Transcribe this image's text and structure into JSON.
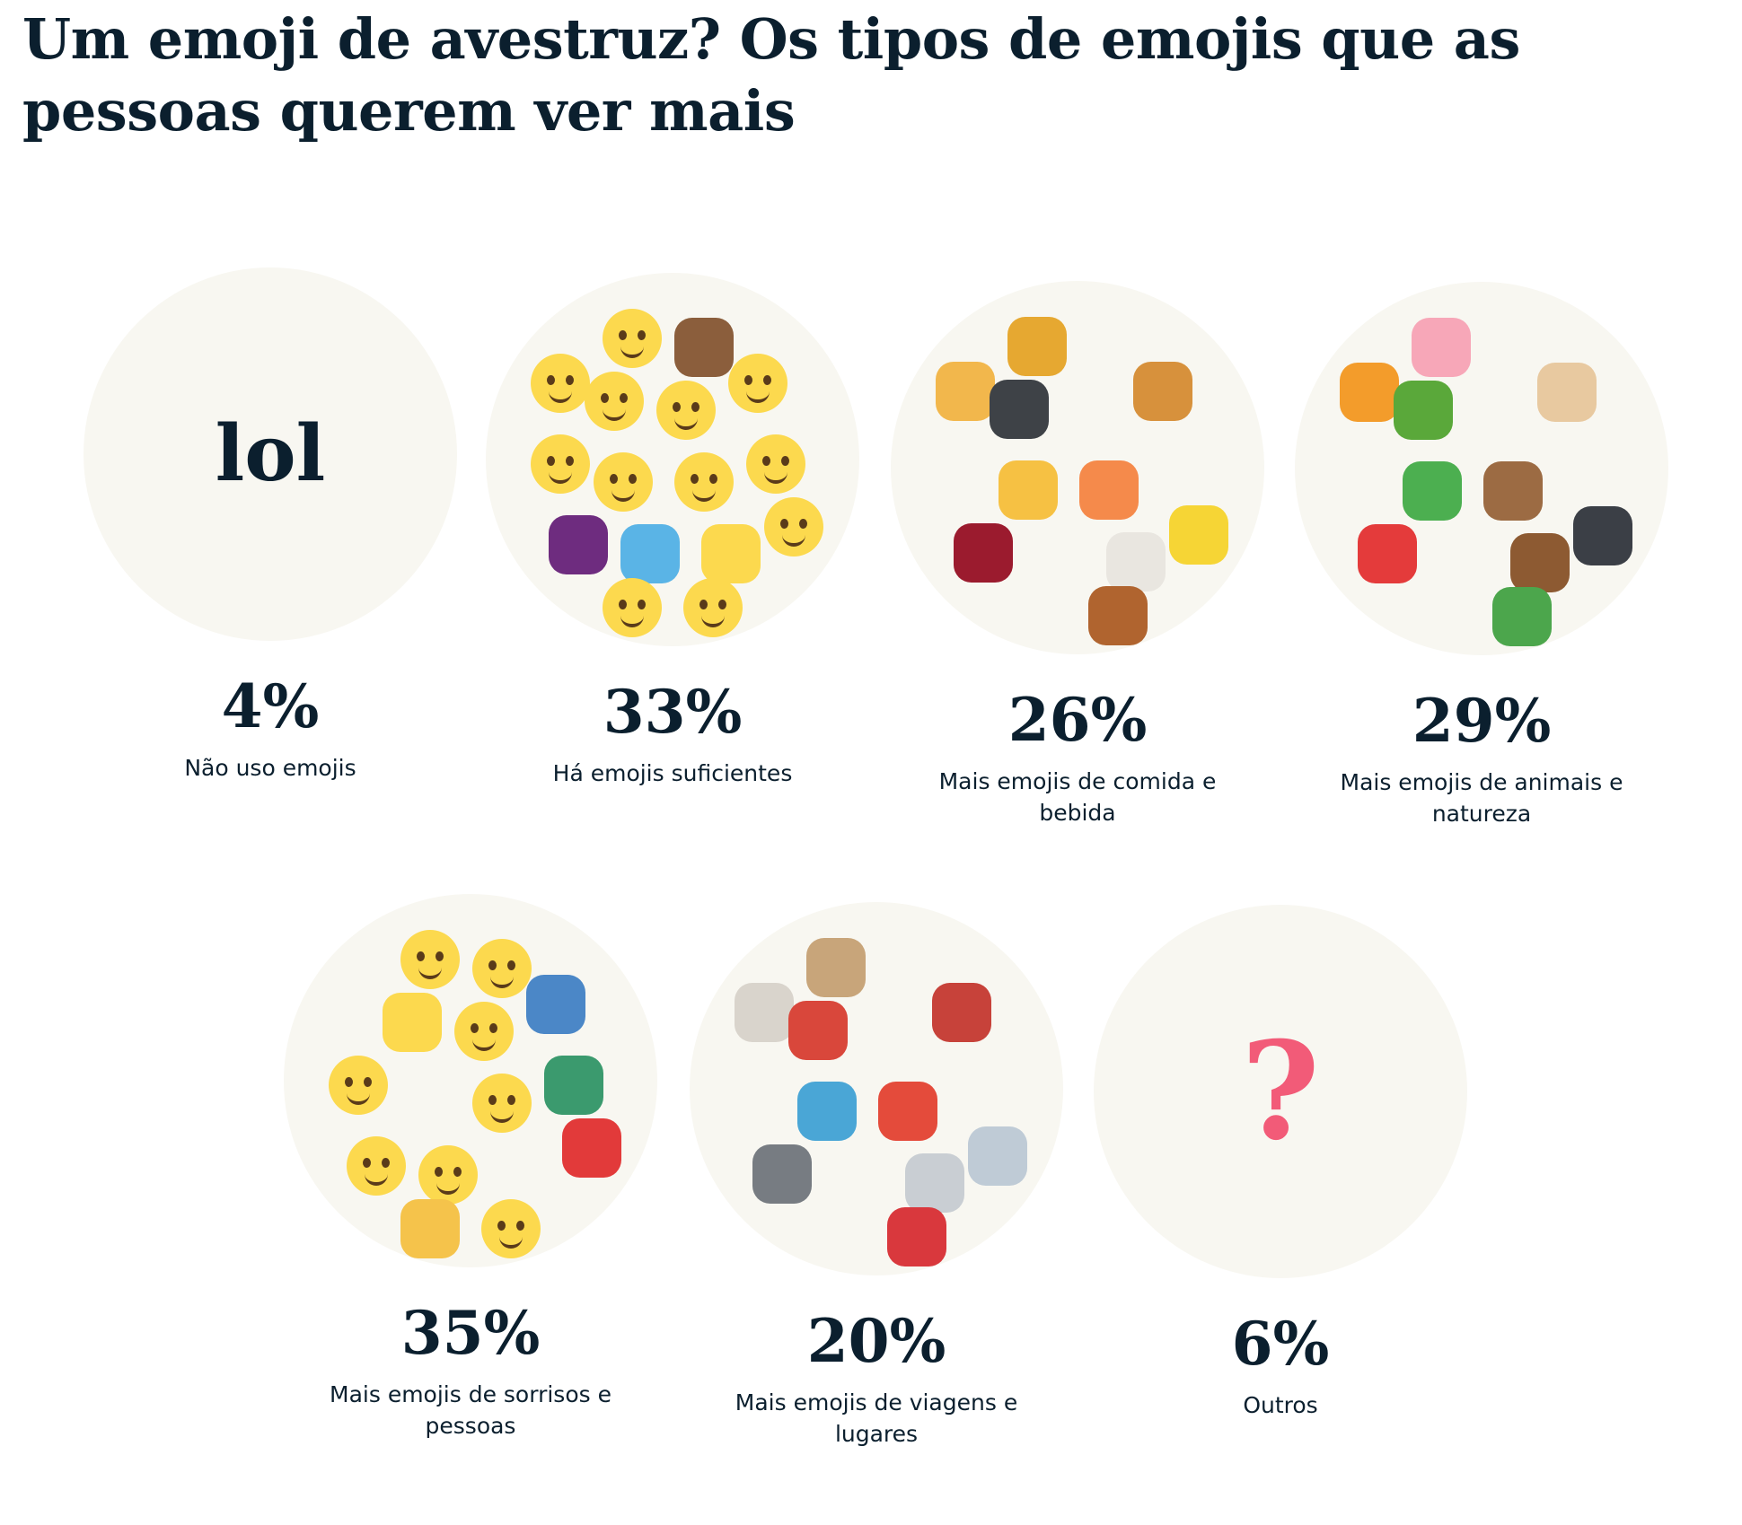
{
  "title": "Um emoji de avestruz? Os tipos de emojis que as pessoas querem ver mais",
  "chart_data": {
    "type": "pictorial",
    "title": "Um emoji de avestruz? Os tipos de emojis que as pessoas querem ver mais",
    "unit": "%",
    "categories": [
      "Não uso emojis",
      "Há emojis suficientes",
      "Mais emojis de comida e bebida",
      "Mais emojis de animais e natureza",
      "Mais emojis de sorrisos e pessoas",
      "Mais emojis de viagens e lugares",
      "Outros"
    ],
    "values": [
      4,
      33,
      26,
      29,
      35,
      20,
      6
    ]
  },
  "items": [
    {
      "pct": "4%",
      "label": "Não uso emojis",
      "center_text": "lol",
      "icons": []
    },
    {
      "pct": "33%",
      "label": "Há emojis suficientes",
      "icons": [
        "blush-face",
        "poop",
        "kiss-face",
        "sunglasses-face",
        "smile-face",
        "laugh-cry-face",
        "laugh-cry-face",
        "angry-face",
        "nerd-face",
        "frown-face",
        "eggplant",
        "droplets",
        "thumbs-up",
        "scream-face",
        "grimace-face",
        "heart-eyes-face"
      ]
    },
    {
      "pct": "26%",
      "label": "Mais emojis de comida e bebida",
      "icons": [
        "pineapple",
        "pizza",
        "stew",
        "burger",
        "beers",
        "peach",
        "wine",
        "coffee",
        "cheese",
        "drumstick"
      ]
    },
    {
      "pct": "29%",
      "label": "Mais emojis de animais e natureza",
      "icons": [
        "pig",
        "tiger",
        "shamrock",
        "pug",
        "palm-tree",
        "bear",
        "crab",
        "monkey",
        "cat",
        "cactus"
      ]
    },
    {
      "pct": "35%",
      "label": "Mais emojis de sorrisos e pessoas",
      "icons": [
        "laugh-cry-face",
        "upside-down-face",
        "woman",
        "grin-face",
        "bowing-person",
        "smile-face",
        "wink-tongue-face",
        "walking-man",
        "grin-face",
        "wink-face",
        "dancer",
        "man",
        "blush-face"
      ]
    },
    {
      "pct": "20%",
      "label": "Mais emojis de viagens e lugares",
      "icons": [
        "school",
        "church",
        "castle",
        "synagogue",
        "statue-of-liberty",
        "tokyo-tower",
        "shop",
        "classical-building",
        "hospital",
        "torii-gate"
      ]
    },
    {
      "pct": "6%",
      "label": "Outros",
      "center_text": "?",
      "icons": []
    }
  ],
  "colors": {
    "disc": "#f8f7f1",
    "text": "#0b1f2e",
    "question": "#f25b78",
    "face": "#fcd94e"
  }
}
